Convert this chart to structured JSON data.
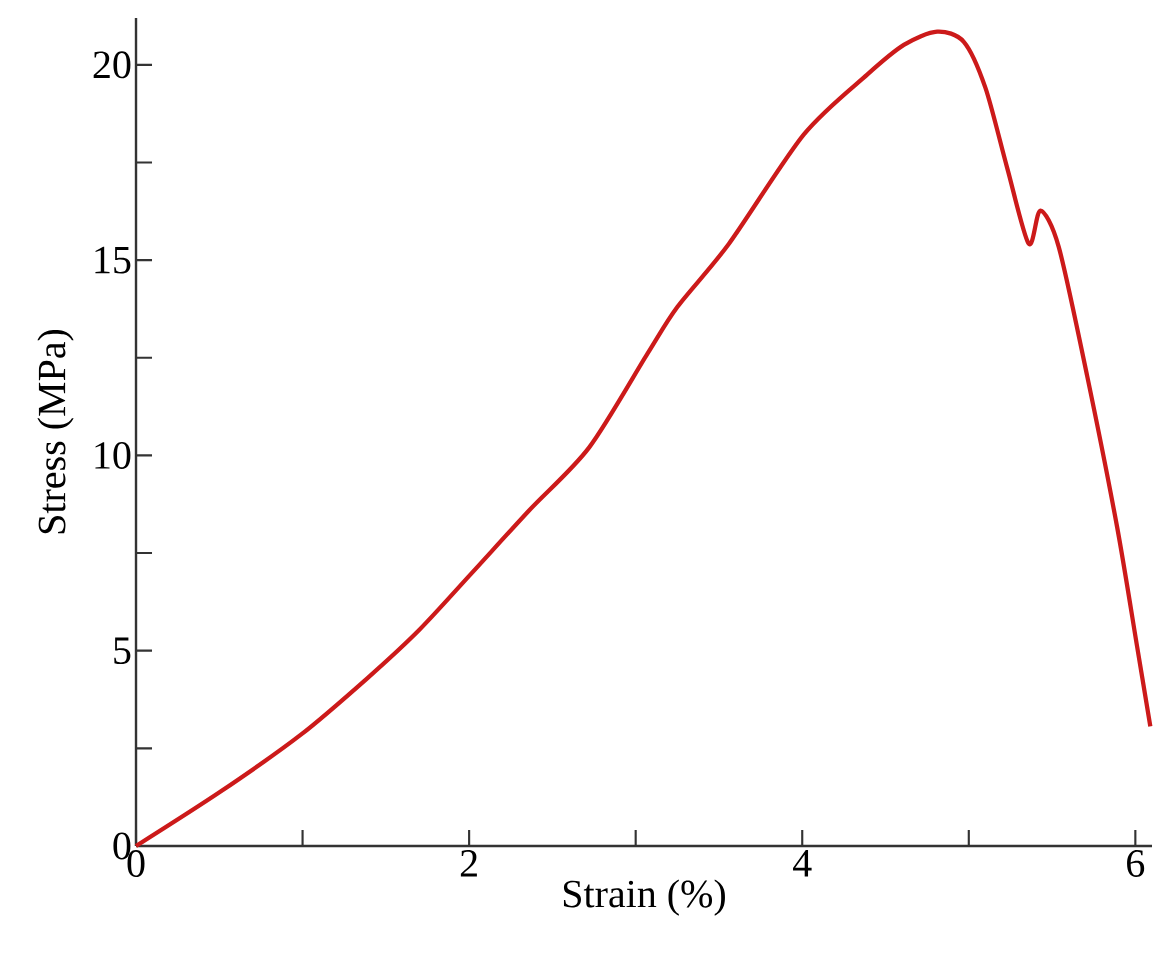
{
  "chart_data": {
    "type": "line",
    "xlabel": "Strain (%)",
    "ylabel": "Stress (MPa)",
    "x": [
      0,
      0.51,
      0.99,
      1.39,
      1.7,
      2.01,
      2.36,
      2.72,
      3.07,
      3.25,
      3.56,
      4.01,
      4.39,
      4.61,
      4.81,
      4.97,
      5.1,
      5.23,
      5.36,
      5.43,
      5.54,
      5.71,
      5.89,
      6.01,
      6.09
    ],
    "series": [
      {
        "color": "#cc1a1a",
        "values": [
          0,
          1.4,
          2.85,
          4.3,
          5.53,
          6.96,
          8.59,
          10.2,
          12.6,
          13.8,
          15.42,
          18.22,
          19.75,
          20.51,
          20.85,
          20.59,
          19.41,
          17.37,
          15.42,
          16.27,
          15.34,
          12.05,
          8.18,
          5.12,
          3.06
        ]
      }
    ],
    "xlim": [
      0,
      6.1
    ],
    "ylim": [
      0,
      21.2
    ],
    "xticks": [
      0,
      {
        "value": 1,
        "label": null
      },
      2,
      {
        "value": 3,
        "label": null
      },
      4,
      {
        "value": 5,
        "label": null
      },
      6
    ],
    "yticks": [
      0,
      {
        "value": 2.5,
        "label": null
      },
      5,
      {
        "value": 7.5,
        "label": null
      },
      10,
      {
        "value": 12.5,
        "label": null
      },
      15,
      {
        "value": 17.5,
        "label": null
      },
      20
    ],
    "marker": "none",
    "line_style": "solid"
  }
}
